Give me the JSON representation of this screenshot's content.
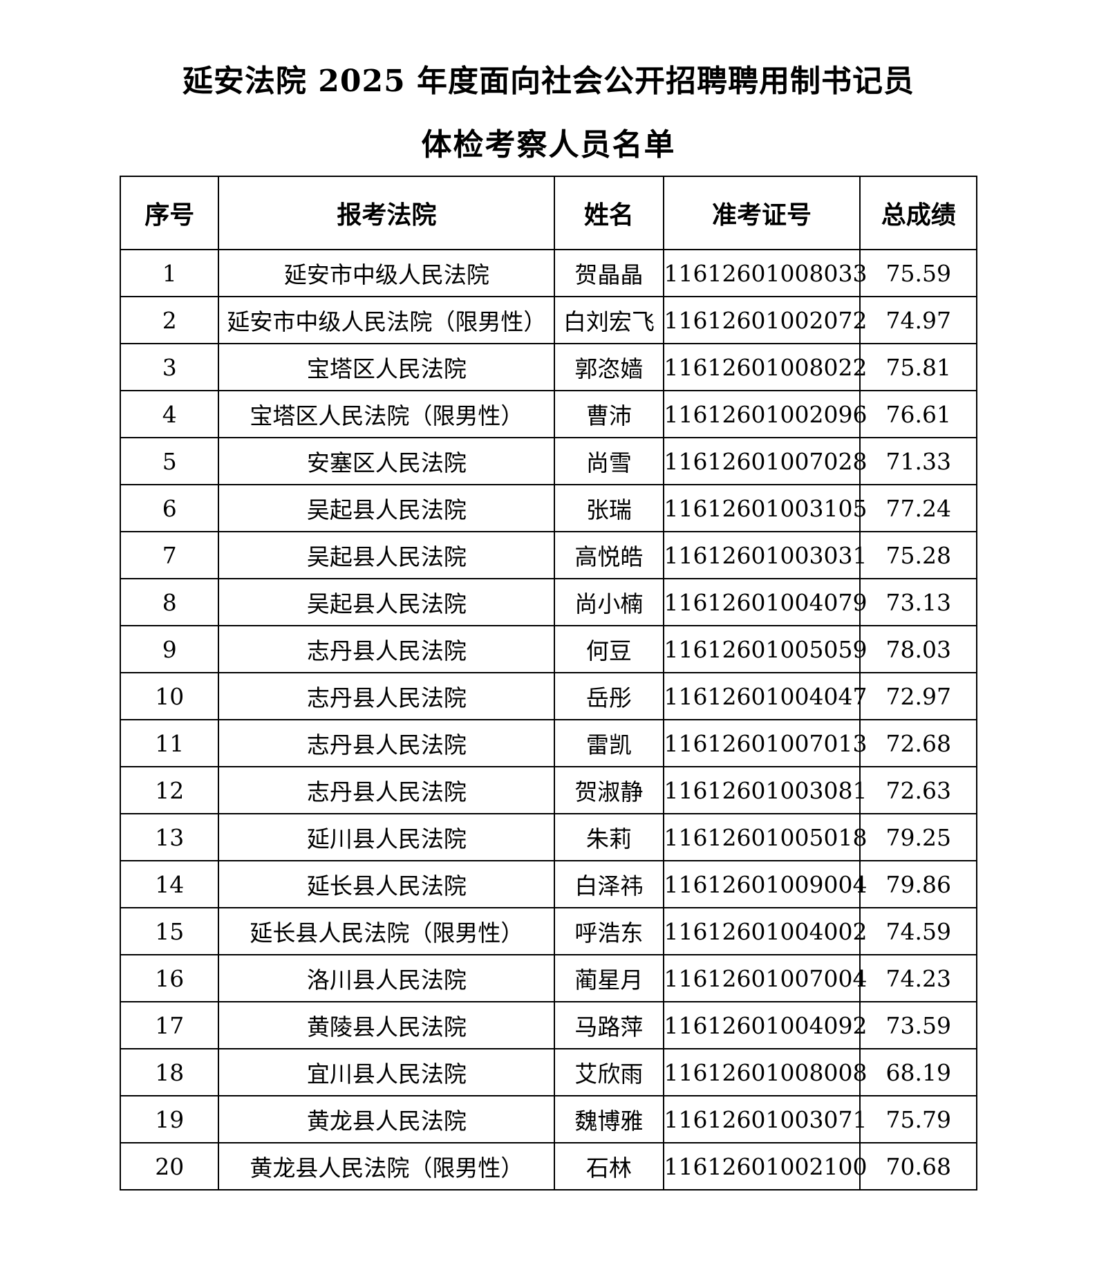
{
  "document": {
    "title_line1": "延安法院 2025 年度面向社会公开招聘聘用制书记员",
    "title_line2": "体检考察人员名单"
  },
  "table": {
    "headers": [
      "序号",
      "报考法院",
      "姓名",
      "准考证号",
      "总成绩"
    ],
    "rows": [
      [
        "1",
        "延安市中级人民法院",
        "贺晶晶",
        "11612601008033",
        "75.59"
      ],
      [
        "2",
        "延安市中级人民法院（限男性）",
        "白刘宏飞",
        "11612601002072",
        "74.97"
      ],
      [
        "3",
        "宝塔区人民法院",
        "郭恣嫱",
        "11612601008022",
        "75.81"
      ],
      [
        "4",
        "宝塔区人民法院（限男性）",
        "曹沛",
        "11612601002096",
        "76.61"
      ],
      [
        "5",
        "安塞区人民法院",
        "尚雪",
        "11612601007028",
        "71.33"
      ],
      [
        "6",
        "吴起县人民法院",
        "张瑞",
        "11612601003105",
        "77.24"
      ],
      [
        "7",
        "吴起县人民法院",
        "高悦皓",
        "11612601003031",
        "75.28"
      ],
      [
        "8",
        "吴起县人民法院",
        "尚小楠",
        "11612601004079",
        "73.13"
      ],
      [
        "9",
        "志丹县人民法院",
        "何豆",
        "11612601005059",
        "78.03"
      ],
      [
        "10",
        "志丹县人民法院",
        "岳彤",
        "11612601004047",
        "72.97"
      ],
      [
        "11",
        "志丹县人民法院",
        "雷凯",
        "11612601007013",
        "72.68"
      ],
      [
        "12",
        "志丹县人民法院",
        "贺淑静",
        "11612601003081",
        "72.63"
      ],
      [
        "13",
        "延川县人民法院",
        "朱莉",
        "11612601005018",
        "79.25"
      ],
      [
        "14",
        "延长县人民法院",
        "白泽祎",
        "11612601009004",
        "79.86"
      ],
      [
        "15",
        "延长县人民法院（限男性）",
        "呼浩东",
        "11612601004002",
        "74.59"
      ],
      [
        "16",
        "洛川县人民法院",
        "蔺星月",
        "11612601007004",
        "74.23"
      ],
      [
        "17",
        "黄陵县人民法院",
        "马路萍",
        "11612601004092",
        "73.59"
      ],
      [
        "18",
        "宜川县人民法院",
        "艾欣雨",
        "11612601008008",
        "68.19"
      ],
      [
        "19",
        "黄龙县人民法院",
        "魏博雅",
        "11612601003071",
        "75.79"
      ],
      [
        "20",
        "黄龙县人民法院（限男性）",
        "石林",
        "11612601002100",
        "70.68"
      ]
    ]
  }
}
